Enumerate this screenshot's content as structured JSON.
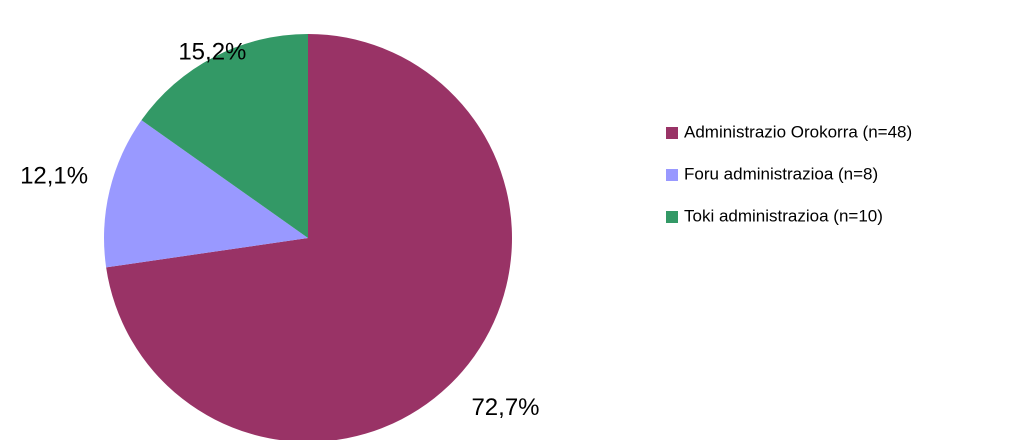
{
  "chart_data": {
    "type": "pie",
    "categories": [
      "Administrazio Orokorra (n=48)",
      "Foru administrazioa (n=8)",
      "Toki administrazioa (n=10)"
    ],
    "values": [
      72.7,
      12.1,
      15.2
    ],
    "value_labels": [
      "72,7%",
      "12,1%",
      "15,2%"
    ],
    "colors": [
      "#993366",
      "#9999ff",
      "#339966"
    ],
    "legend": "right"
  }
}
